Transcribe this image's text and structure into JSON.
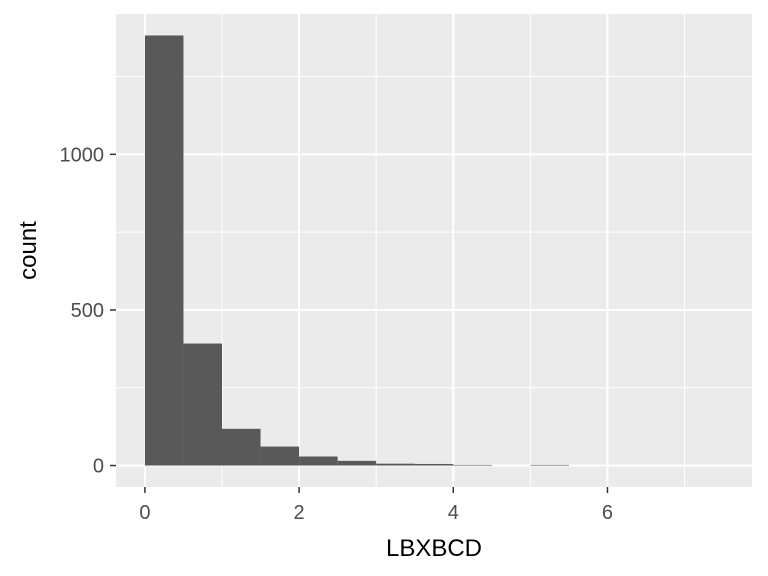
{
  "chart_data": {
    "type": "bar",
    "xlabel": "LBXBCD",
    "ylabel": "count",
    "bins": [
      {
        "x0": 0.0,
        "x1": 0.5,
        "count": 1382
      },
      {
        "x0": 0.5,
        "x1": 1.0,
        "count": 392
      },
      {
        "x0": 1.0,
        "x1": 1.5,
        "count": 118
      },
      {
        "x0": 1.5,
        "x1": 2.0,
        "count": 61
      },
      {
        "x0": 2.0,
        "x1": 2.5,
        "count": 29
      },
      {
        "x0": 2.5,
        "x1": 3.0,
        "count": 15
      },
      {
        "x0": 3.0,
        "x1": 3.5,
        "count": 6
      },
      {
        "x0": 3.5,
        "x1": 4.0,
        "count": 5
      },
      {
        "x0": 4.0,
        "x1": 4.5,
        "count": 2
      },
      {
        "x0": 4.5,
        "x1": 5.0,
        "count": 0
      },
      {
        "x0": 5.0,
        "x1": 5.5,
        "count": 2
      },
      {
        "x0": 5.5,
        "x1": 6.0,
        "count": 0
      },
      {
        "x0": 6.0,
        "x1": 6.5,
        "count": 0
      },
      {
        "x0": 6.5,
        "x1": 7.0,
        "count": 0
      },
      {
        "x0": 7.0,
        "x1": 7.5,
        "count": 0
      }
    ],
    "xlim": [
      -0.375,
      7.875
    ],
    "ylim": [
      -69,
      1451
    ],
    "x_ticks": [
      0,
      2,
      4,
      6
    ],
    "y_ticks": [
      0,
      500,
      1000
    ],
    "x_tick_labels": [
      "0",
      "2",
      "4",
      "6"
    ],
    "y_tick_labels": [
      "0",
      "500",
      "1000"
    ],
    "grid": true,
    "colors": {
      "panel_background": "#ebebeb",
      "grid_major": "#ffffff",
      "bar_fill": "#595959",
      "tick_text": "#4d4d4d",
      "tick_mark": "#333333"
    }
  }
}
